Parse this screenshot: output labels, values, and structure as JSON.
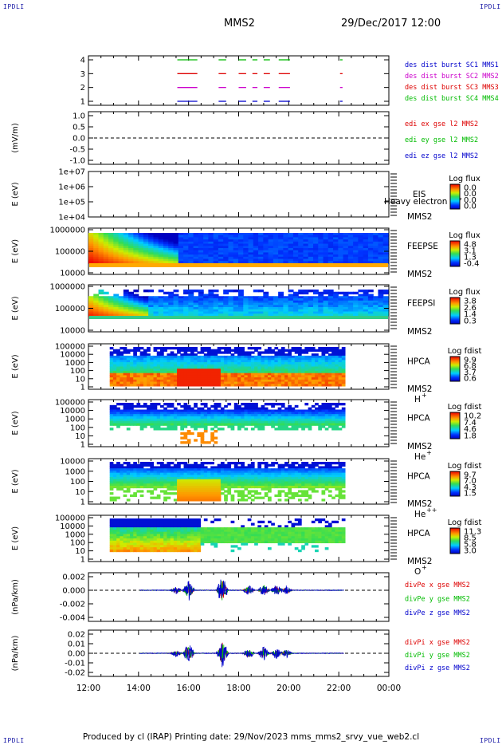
{
  "corners": {
    "tl": "IPDLI",
    "tr": "IPDLI",
    "bl": "IPDLI",
    "br": "IPDLI"
  },
  "header": {
    "spacecraft": "MMS2",
    "datetime": "29/Dec/2017 12:00"
  },
  "footer": {
    "text": "Produced by cl (IRAP)   Printing date: 29/Nov/2023   mms_mms2_srvy_vue_web2.cl"
  },
  "colors": {
    "mms1": "#0000cc",
    "mms2": "#cc00cc",
    "mms3": "#dd0000",
    "mms4": "#00bb00",
    "x": "#dd0000",
    "y": "#00bb00",
    "z": "#0000cc"
  },
  "chart_data": [
    {
      "id": "burst",
      "type": "line",
      "ylabel": "",
      "yticks": [
        "4",
        "3",
        "2",
        "1"
      ],
      "legend": [
        {
          "label": "des dist burst SC1 MMS1",
          "color": "#0000cc"
        },
        {
          "label": "des dist burst SC2 MMS2",
          "color": "#cc00cc"
        },
        {
          "label": "des dist burst SC3 MMS3",
          "color": "#dd0000"
        },
        {
          "label": "des dist burst SC4 MMS4",
          "color": "#00bb00"
        }
      ],
      "intervals_hours": [
        [
          15.55,
          16.35
        ],
        [
          17.2,
          17.5
        ],
        [
          18.0,
          18.3
        ],
        [
          18.55,
          18.75
        ],
        [
          19.0,
          19.25
        ],
        [
          19.6,
          20.05
        ],
        [
          22.05,
          22.15
        ]
      ]
    },
    {
      "id": "edi",
      "type": "line",
      "ylabel": "(mV/m)",
      "yticks": [
        "1.0",
        "0.5",
        "0.0",
        "-0.5",
        "-1.0"
      ],
      "ylim": [
        -1.0,
        1.0
      ],
      "legend": [
        {
          "label": "edi ex gse l2 MMS2",
          "color": "#dd0000"
        },
        {
          "label": "edi ey gse l2 MMS2",
          "color": "#00bb00"
        },
        {
          "label": "edi ez gse l2 MMS2",
          "color": "#0000cc"
        }
      ]
    },
    {
      "id": "eis",
      "type": "heatmap",
      "ylabel": "E (eV)",
      "yticks": [
        "1e+07",
        "1e+06",
        "1e+05",
        "1e+04"
      ],
      "instrument": "EIS",
      "spacecraft": "MMS2",
      "extra": "Heavy electron tof",
      "cb_title": "Log flux",
      "cb_ticks": [
        "0.0",
        "0.0",
        "0.0",
        "0.0"
      ]
    },
    {
      "id": "feepse",
      "type": "heatmap",
      "ylabel": "E (eV)",
      "yticks": [
        "1000000",
        "100000",
        "10000"
      ],
      "instrument": "FEEPSE",
      "spacecraft": "MMS2",
      "cb_title": "Log flux",
      "cb_ticks": [
        "4.8",
        "3.1",
        "1.3",
        "-0.4"
      ]
    },
    {
      "id": "feepsi",
      "type": "heatmap",
      "ylabel": "E (eV)",
      "yticks": [
        "1000000",
        "100000",
        "10000"
      ],
      "instrument": "FEEPSI",
      "spacecraft": "MMS2",
      "cb_title": "Log flux",
      "cb_ticks": [
        "3.8",
        "2.6",
        "1.4",
        "0.3"
      ]
    },
    {
      "id": "hpca_h",
      "type": "heatmap",
      "ylabel": "E (eV)",
      "yticks": [
        "100000",
        "10000",
        "1000",
        "100",
        "10",
        "1"
      ],
      "instrument": "HPCA",
      "spacecraft": "MMS2",
      "species": "H",
      "charge": "+",
      "cb_title": "Log fdist",
      "cb_ticks": [
        "9.9",
        "6.8",
        "3.7",
        "0.6"
      ]
    },
    {
      "id": "hpca_he",
      "type": "heatmap",
      "ylabel": "E (eV)",
      "yticks": [
        "100000",
        "10000",
        "1000",
        "100",
        "10",
        "1"
      ],
      "instrument": "HPCA",
      "spacecraft": "MMS2",
      "species": "He",
      "charge": "+",
      "cb_title": "Log fdist",
      "cb_ticks": [
        "10.2",
        "7.4",
        "4.6",
        "1.8"
      ]
    },
    {
      "id": "hpca_hepp",
      "type": "heatmap",
      "ylabel": "E (eV)",
      "yticks": [
        "10000",
        "1000",
        "100",
        "10",
        "1"
      ],
      "instrument": "HPCA",
      "spacecraft": "MMS2",
      "species": "He",
      "charge": "++",
      "cb_title": "Log fdist",
      "cb_ticks": [
        "9.7",
        "7.0",
        "4.3",
        "1.5"
      ]
    },
    {
      "id": "hpca_o",
      "type": "heatmap",
      "ylabel": "E (eV)",
      "yticks": [
        "100000",
        "10000",
        "1000",
        "100",
        "10",
        "1"
      ],
      "instrument": "HPCA",
      "spacecraft": "MMS2",
      "species": "O",
      "charge": "+",
      "cb_title": "Log fdist",
      "cb_ticks": [
        "11.3",
        "8.5",
        "5.8",
        "3.0"
      ]
    },
    {
      "id": "divpe",
      "type": "line",
      "ylabel": "(nPa/km)",
      "yticks": [
        "0.002",
        "0.000",
        "-0.002",
        "-0.004"
      ],
      "ylim": [
        -0.005,
        0.003
      ],
      "legend": [
        {
          "label": "divPe x gse MMS2",
          "color": "#dd0000"
        },
        {
          "label": "divPe y gse MMS2",
          "color": "#00bb00"
        },
        {
          "label": "divPe z gse MMS2",
          "color": "#0000cc"
        }
      ]
    },
    {
      "id": "divpi",
      "type": "line",
      "ylabel": "(nPa/km)",
      "yticks": [
        "0.02",
        "0.01",
        "0.00",
        "-0.01",
        "-0.02"
      ],
      "ylim": [
        -0.025,
        0.025
      ],
      "legend": [
        {
          "label": "divPi x gse MMS2",
          "color": "#dd0000"
        },
        {
          "label": "divPi y gse MMS2",
          "color": "#00bb00"
        },
        {
          "label": "divPi z gse MMS2",
          "color": "#0000cc"
        }
      ]
    }
  ],
  "xaxis": {
    "range_hours": [
      12,
      24
    ],
    "tick_labels": [
      "12:00",
      "14:00",
      "16:00",
      "18:00",
      "20:00",
      "22:00",
      "00:00"
    ]
  }
}
